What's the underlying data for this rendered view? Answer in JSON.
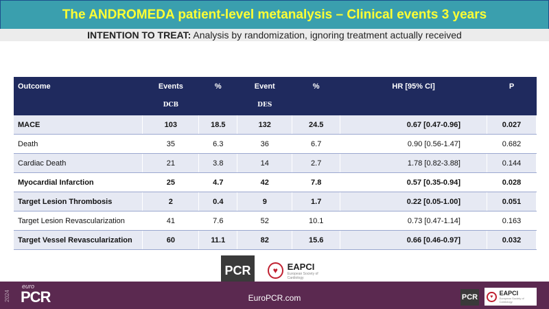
{
  "header": {
    "title": "The ANDROMEDA patient-level metanalysis – Clinical events 3 years",
    "subtitle_bold": "INTENTION TO TREAT:",
    "subtitle_rest": " Analysis by randomization, ignoring treatment actually received"
  },
  "table": {
    "headers": {
      "outcome": "Outcome",
      "events_dcb": "Events",
      "events_dcb_sub": "DCB",
      "pct_dcb": "%",
      "events_des": "Event",
      "events_des_sub": "DES",
      "pct_des": "%",
      "hr": "HR [95% CI]",
      "p": "P"
    },
    "rows": [
      {
        "outcome": "MACE",
        "dcb": "103",
        "dcb_pct": "18.5",
        "des": "132",
        "des_pct": "24.5",
        "hr": "0.67 [0.47-0.96]",
        "p": "0.027"
      },
      {
        "outcome": "Death",
        "dcb": "35",
        "dcb_pct": "6.3",
        "des": "36",
        "des_pct": "6.7",
        "hr": "0.90 [0.56-1.47]",
        "p": "0.682"
      },
      {
        "outcome": "Cardiac Death",
        "dcb": "21",
        "dcb_pct": "3.8",
        "des": "14",
        "des_pct": "2.7",
        "hr": "1.78 [0.82-3.88]",
        "p": "0.144"
      },
      {
        "outcome": "Myocardial Infarction",
        "dcb": "25",
        "dcb_pct": "4.7",
        "des": "42",
        "des_pct": "7.8",
        "hr": "0.57 [0.35-0.94]",
        "p": "0.028"
      },
      {
        "outcome": "Target Lesion Thrombosis",
        "dcb": "2",
        "dcb_pct": "0.4",
        "des": "9",
        "des_pct": "1.7",
        "hr": "0.22 [0.05-1.00]",
        "p": "0.051"
      },
      {
        "outcome": "Target Lesion Revascularization",
        "dcb": "41",
        "dcb_pct": "7.6",
        "des": "52",
        "des_pct": "10.1",
        "hr": "0.73 [0.47-1.14]",
        "p": "0.163"
      },
      {
        "outcome": "Target Vessel Revascularization",
        "dcb": "60",
        "dcb_pct": "11.1",
        "des": "82",
        "des_pct": "15.6",
        "hr": "0.66 [0.46-0.97]",
        "p": "0.032"
      }
    ]
  },
  "logos": {
    "pcr": "PCR",
    "eapci": "EAPCI",
    "eapci_sub": "European Society of Cardiology"
  },
  "footer": {
    "year": "2024",
    "euro": "euro",
    "pcr": "PCR",
    "site": "EuroPCR.com"
  },
  "colors": {
    "title_bg": "#3a9fae",
    "title_text": "#ffff33",
    "table_header": "#1f2a5e",
    "footer_bg": "#5b2950"
  }
}
